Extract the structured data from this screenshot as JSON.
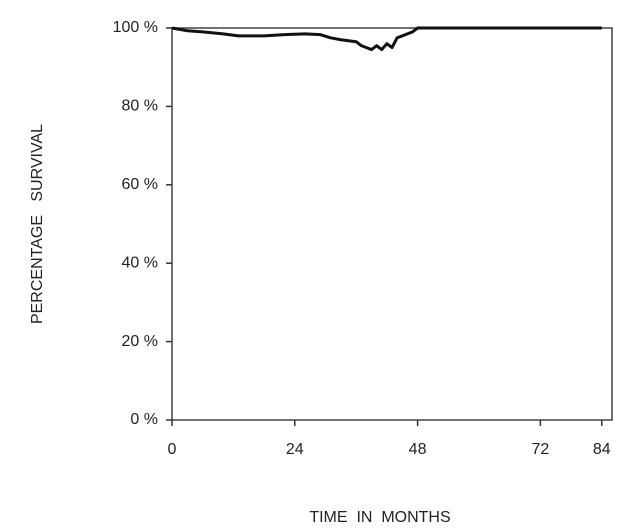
{
  "chart_data": {
    "type": "line",
    "x_label": "TIME  IN  MONTHS",
    "y_label": "PERCENTAGE   SURVIVAL",
    "x": [
      0,
      3,
      6,
      10,
      13,
      18,
      22,
      26,
      29,
      31,
      33,
      36,
      37,
      38,
      39,
      40,
      41,
      42,
      43,
      44,
      45,
      46,
      47,
      48,
      60,
      72,
      84
    ],
    "series": [
      {
        "color": "#111111",
        "values": [
          100,
          99.3,
          99,
          98.5,
          98,
          98,
          98.3,
          98.5,
          98.3,
          97.5,
          97,
          96.5,
          95.5,
          95,
          94.5,
          95.5,
          94.5,
          96,
          95,
          97.5,
          98,
          98.5,
          99,
          100,
          100,
          100,
          100
        ]
      }
    ],
    "xlim": [
      0,
      86
    ],
    "ylim": [
      0,
      100
    ],
    "xticks": [
      0,
      24,
      48,
      72,
      84
    ],
    "yticks": [
      {
        "value": 0,
        "label": "0 %"
      },
      {
        "value": 20,
        "label": "20 %"
      },
      {
        "value": 40,
        "label": "40 %"
      },
      {
        "value": 60,
        "label": "60 %"
      },
      {
        "value": 80,
        "label": "80 %"
      },
      {
        "value": 100,
        "label": "100 %"
      }
    ]
  }
}
